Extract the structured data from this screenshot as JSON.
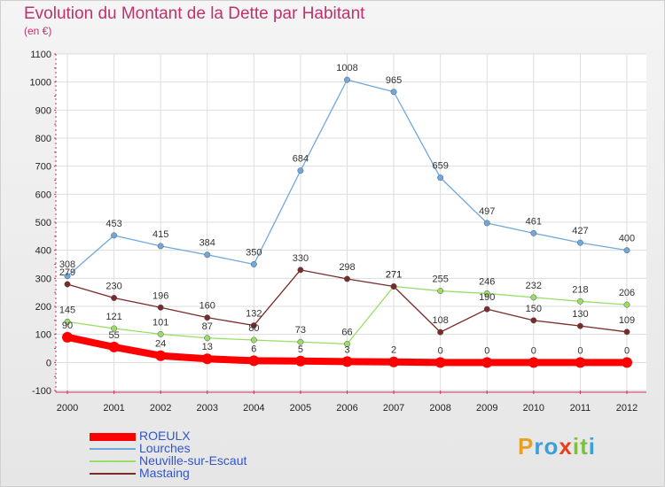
{
  "chart_data": {
    "type": "line",
    "title": "Evolution du Montant de la Dette par Habitant",
    "subtitle": "(en €)",
    "x": [
      "2000",
      "2001",
      "2002",
      "2003",
      "2004",
      "2005",
      "2006",
      "2007",
      "2008",
      "2009",
      "2010",
      "2011",
      "2012"
    ],
    "ylim": [
      -100,
      1100
    ],
    "yticks": [
      -100,
      0,
      100,
      200,
      300,
      400,
      500,
      600,
      700,
      800,
      900,
      1000,
      1100
    ],
    "grid": true,
    "legend_position": "bottom-left",
    "series": [
      {
        "name": "ROEULX",
        "color": "#ff0000",
        "values": [
          90,
          55,
          24,
          13,
          6,
          5,
          3,
          2,
          0,
          0,
          0,
          0,
          0
        ]
      },
      {
        "name": "Lourches",
        "color": "#6fa8dc",
        "values": [
          308,
          453,
          415,
          384,
          350,
          684,
          1008,
          965,
          659,
          497,
          461,
          427,
          400
        ]
      },
      {
        "name": "Neuville-sur-Escaut",
        "color": "#99dd66",
        "values": [
          145,
          121,
          101,
          87,
          80,
          73,
          66,
          271,
          255,
          246,
          232,
          218,
          206
        ]
      },
      {
        "name": "Mastaing",
        "color": "#7a2a2a",
        "values": [
          279,
          230,
          196,
          160,
          132,
          330,
          298,
          271,
          108,
          190,
          150,
          130,
          109
        ]
      }
    ]
  },
  "brand": "Proxiti"
}
